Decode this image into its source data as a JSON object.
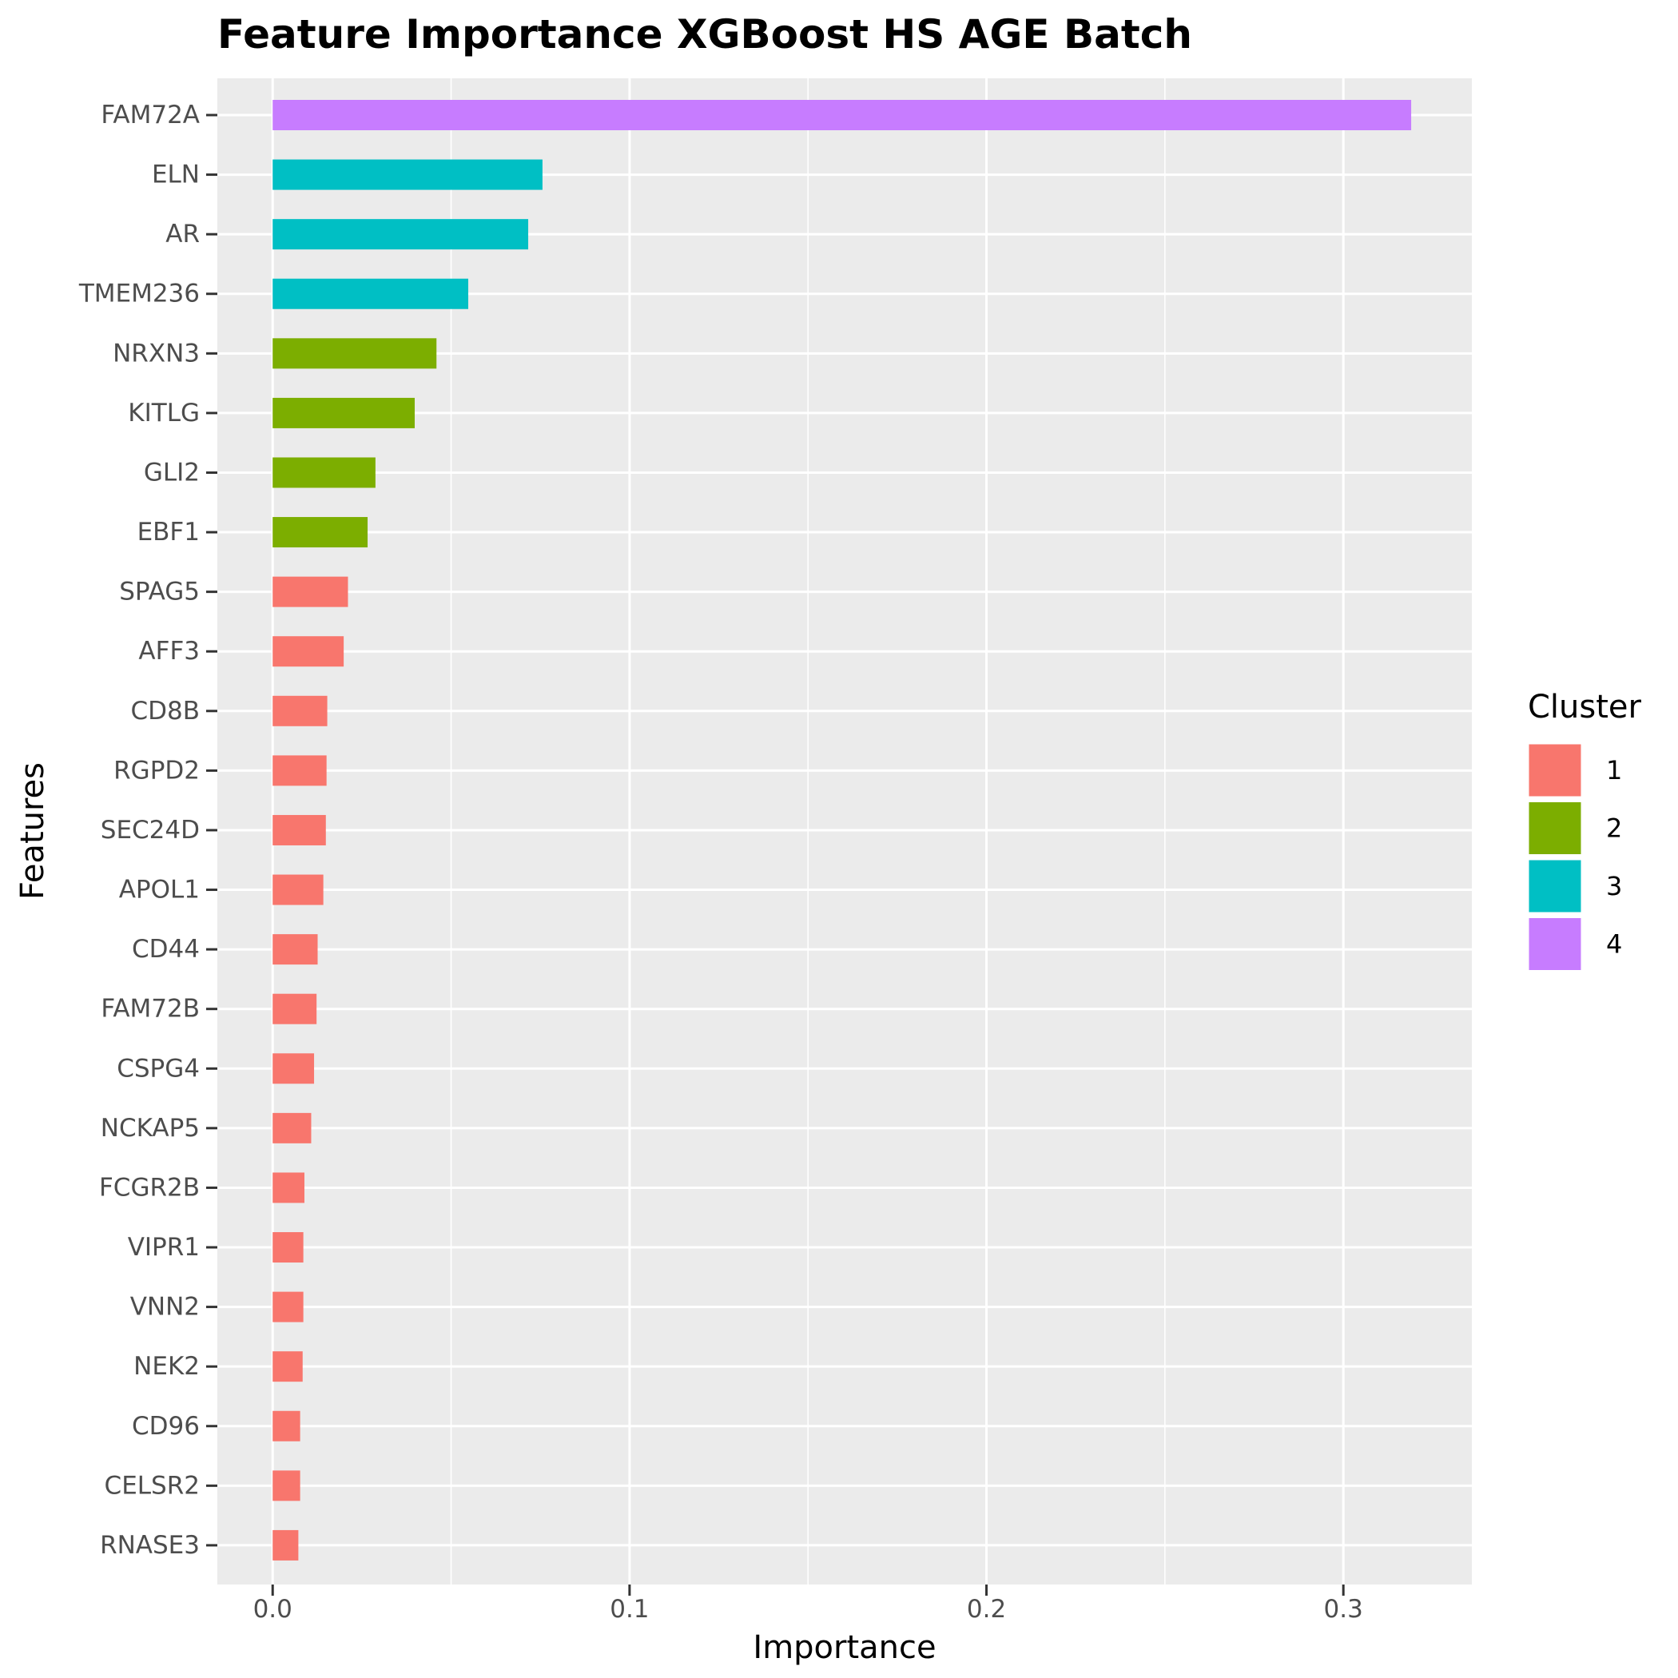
{
  "chart_data": {
    "type": "bar",
    "orientation": "horizontal",
    "title": "Feature Importance XGBoost HS AGE Batch",
    "xlabel": "Importance",
    "ylabel": "Features",
    "xlim": [
      -0.0155,
      0.336
    ],
    "x_ticks": [
      0.0,
      0.1,
      0.2,
      0.3
    ],
    "x_tick_labels": [
      "0.0",
      "0.1",
      "0.2",
      "0.3"
    ],
    "grid": true,
    "legend": {
      "title": "Cluster",
      "placement": "right",
      "entries": [
        {
          "label": "1",
          "color": "#F8766D"
        },
        {
          "label": "2",
          "color": "#7CAE00"
        },
        {
          "label": "3",
          "color": "#00BFC4"
        },
        {
          "label": "4",
          "color": "#C77CFF"
        }
      ]
    },
    "categories": [
      "FAM72A",
      "ELN",
      "AR",
      "TMEM236",
      "NRXN3",
      "KITLG",
      "GLI2",
      "EBF1",
      "SPAG5",
      "AFF3",
      "CD8B",
      "RGPD2",
      "SEC24D",
      "APOL1",
      "CD44",
      "FAM72B",
      "CSPG4",
      "NCKAP5",
      "FCGR2B",
      "VIPR1",
      "VNN2",
      "NEK2",
      "CD96",
      "CELSR2",
      "RNASE3"
    ],
    "values": [
      0.319,
      0.0756,
      0.0716,
      0.0548,
      0.0459,
      0.0398,
      0.0288,
      0.0266,
      0.0211,
      0.0199,
      0.0153,
      0.0151,
      0.0149,
      0.0142,
      0.0126,
      0.0123,
      0.0116,
      0.0108,
      0.0089,
      0.0086,
      0.0086,
      0.0084,
      0.0077,
      0.0077,
      0.0072
    ],
    "clusters": [
      "4",
      "3",
      "3",
      "3",
      "2",
      "2",
      "2",
      "2",
      "1",
      "1",
      "1",
      "1",
      "1",
      "1",
      "1",
      "1",
      "1",
      "1",
      "1",
      "1",
      "1",
      "1",
      "1",
      "1",
      "1"
    ]
  }
}
